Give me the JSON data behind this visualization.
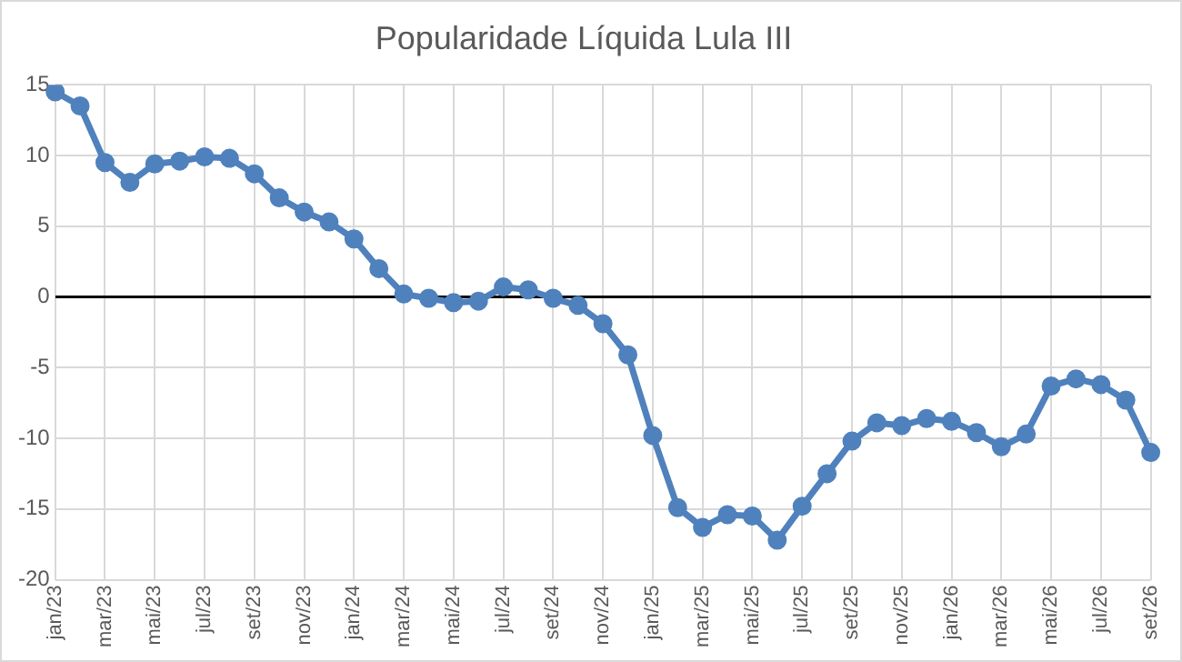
{
  "chart_data": {
    "type": "line",
    "title": "Popularidade Líquida Lula III",
    "categories": [
      "jan/23",
      null,
      "mar/23",
      null,
      "mai/23",
      null,
      "jul/23",
      null,
      "set/23",
      null,
      "nov/23",
      null,
      "jan/24",
      null,
      "mar/24",
      null,
      "mai/24",
      null,
      "jul/24",
      null,
      "set/24",
      null,
      "nov/24",
      null,
      "jan/25",
      null,
      "mar/25",
      null,
      "mai/25",
      null,
      "jul/25",
      null,
      "set/25",
      null,
      "nov/25",
      null,
      "jan/26",
      null,
      "mar/26",
      null,
      "mai/26",
      null,
      "jul/26",
      null,
      "set/26"
    ],
    "series": [
      {
        "color": "#4f81bd",
        "values": [
          14.5,
          13.5,
          9.5,
          8.1,
          9.4,
          9.6,
          9.9,
          9.8,
          8.7,
          7.0,
          6.0,
          5.3,
          4.1,
          2.0,
          0.2,
          -0.1,
          -0.4,
          -0.3,
          0.7,
          0.5,
          -0.1,
          -0.6,
          -1.9,
          -4.1,
          -9.8,
          -14.9,
          -16.3,
          -15.4,
          -15.5,
          -17.2,
          -14.8,
          -12.5,
          -10.2,
          -8.9,
          -9.1,
          -8.6,
          -8.8,
          -9.6,
          -10.6,
          -9.7,
          -6.3,
          -5.8,
          -6.2,
          -7.3,
          -11.0
        ]
      }
    ],
    "ylim": [
      -20,
      15
    ],
    "yticks": [
      -20,
      -15,
      -10,
      -5,
      0,
      5,
      10,
      15
    ],
    "grid": true,
    "legend": false,
    "marker": "circle",
    "line_style": "solid"
  }
}
